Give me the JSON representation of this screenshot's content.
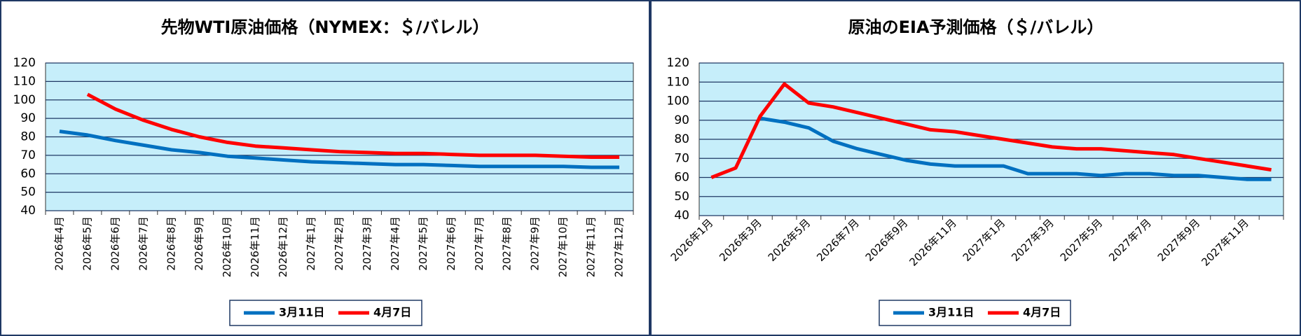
{
  "chart_data": [
    {
      "type": "line",
      "title": "先物WTI原油価格（NYMEX：＄/バレル）",
      "categories": [
        "2026年4月",
        "2026年5月",
        "2026年6月",
        "2026年7月",
        "2026年8月",
        "2026年9月",
        "2026年10月",
        "2026年11月",
        "2026年12月",
        "2027年1月",
        "2027年2月",
        "2027年3月",
        "2027年4月",
        "2027年5月",
        "2027年6月",
        "2027年7月",
        "2027年8月",
        "2027年9月",
        "2027年10月",
        "2027年11月",
        "2027年12月"
      ],
      "series": [
        {
          "name": "3月11日",
          "color": "#0070c0",
          "values": [
            83,
            81,
            78,
            75.5,
            73,
            71.5,
            69.5,
            68.5,
            67.5,
            66.5,
            66,
            65.5,
            65,
            65,
            64.5,
            64,
            64,
            64,
            64,
            63.5,
            63.5
          ]
        },
        {
          "name": "4月7日",
          "color": "#ff0000",
          "values": [
            null,
            103,
            95,
            89,
            84,
            80,
            77,
            75,
            74,
            73,
            72,
            71.5,
            71,
            71,
            70.5,
            70,
            70,
            70,
            69.5,
            69,
            69
          ]
        }
      ],
      "ylim": [
        40,
        120
      ],
      "yticks": [
        40,
        50,
        60,
        70,
        80,
        90,
        100,
        110,
        120
      ],
      "grid": true,
      "plot_background": "#c6eefa"
    },
    {
      "type": "line",
      "title": "原油のEIA予測価格（＄/バレル）",
      "categories": [
        "2026年1月",
        null,
        "2026年3月",
        null,
        "2026年5月",
        null,
        "2026年7月",
        null,
        "2026年9月",
        null,
        "2026年11月",
        null,
        "2027年1月",
        null,
        "2027年3月",
        null,
        "2027年5月",
        null,
        "2027年7月",
        null,
        "2027年9月",
        null,
        "2027年11月",
        null
      ],
      "series": [
        {
          "name": "3月11日",
          "color": "#0070c0",
          "values": [
            null,
            null,
            91,
            89,
            86,
            79,
            75,
            72,
            69,
            67,
            66,
            66,
            66,
            62,
            62,
            62,
            61,
            62,
            62,
            61,
            61,
            60,
            59,
            59
          ]
        },
        {
          "name": "4月7日",
          "color": "#ff0000",
          "values": [
            60,
            65,
            92,
            109,
            99,
            97,
            94,
            91,
            88,
            85,
            84,
            82,
            80,
            78,
            76,
            75,
            75,
            74,
            73,
            72,
            70,
            68,
            66,
            64
          ]
        }
      ],
      "ylim": [
        40,
        120
      ],
      "yticks": [
        40,
        50,
        60,
        70,
        80,
        90,
        100,
        110,
        120
      ],
      "grid": true,
      "plot_background": "#c6eefa"
    }
  ]
}
